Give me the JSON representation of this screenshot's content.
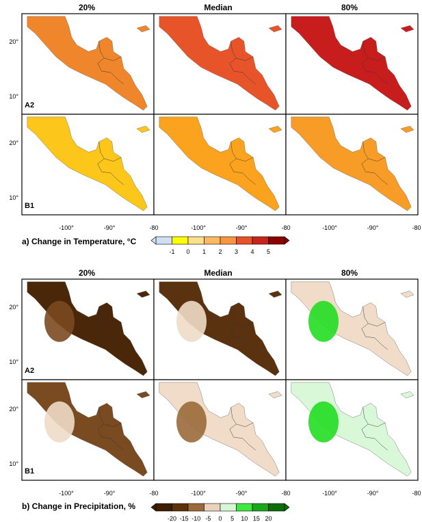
{
  "section_a": {
    "column_headers": [
      "20%",
      "Median",
      "80%"
    ],
    "row_labels": [
      "A2",
      "B1"
    ],
    "lat_labels": [
      "20°",
      "10°"
    ],
    "lon_labels": [
      "-100°",
      "-90°",
      "-80"
    ],
    "colorbar_title": "a) Change in Temperature, °C",
    "colorbar_ticks": [
      "-1",
      "0",
      "1",
      "2",
      "3",
      "4",
      "5"
    ],
    "colorbar_colors": [
      "#cfe0f4",
      "#ffff00",
      "#fee08b",
      "#fdb863",
      "#f89540",
      "#e8522a",
      "#c8231c",
      "#8b0000"
    ],
    "panel_fill": [
      [
        "#f0862c",
        "#e8542a",
        "#c81d1d"
      ],
      [
        "#fdc61a",
        "#fba31e",
        "#f89c28"
      ]
    ]
  },
  "section_b": {
    "column_headers": [
      "20%",
      "Median",
      "80%"
    ],
    "row_labels": [
      "A2",
      "B1"
    ],
    "lat_labels": [
      "20°",
      "10°"
    ],
    "lon_labels": [
      "-100°",
      "-90°",
      "-80"
    ],
    "colorbar_title": "b) Change in Precipitation, %",
    "colorbar_ticks": [
      "-20",
      "-15",
      "-10",
      "-5",
      "0",
      "5",
      "10",
      "15",
      "20"
    ],
    "colorbar_colors": [
      "#3d1f00",
      "#5c3209",
      "#9a6a3a",
      "#e9d3bd",
      "#d6f6d6",
      "#3ee83e",
      "#1aa81a",
      "#0a6e0a"
    ],
    "panel_fill": [
      [
        "#4a2708",
        "#5a3210",
        "#f0dcc8"
      ],
      [
        "#7a4a20",
        "#f0dcc8",
        "#d8f8d8"
      ]
    ],
    "panel_patch": [
      [
        "#7a4a20",
        "#f0dcc8",
        "#22dd22"
      ],
      [
        "#f0dcc8",
        "#9a6a3a",
        "#22dd22"
      ]
    ]
  }
}
